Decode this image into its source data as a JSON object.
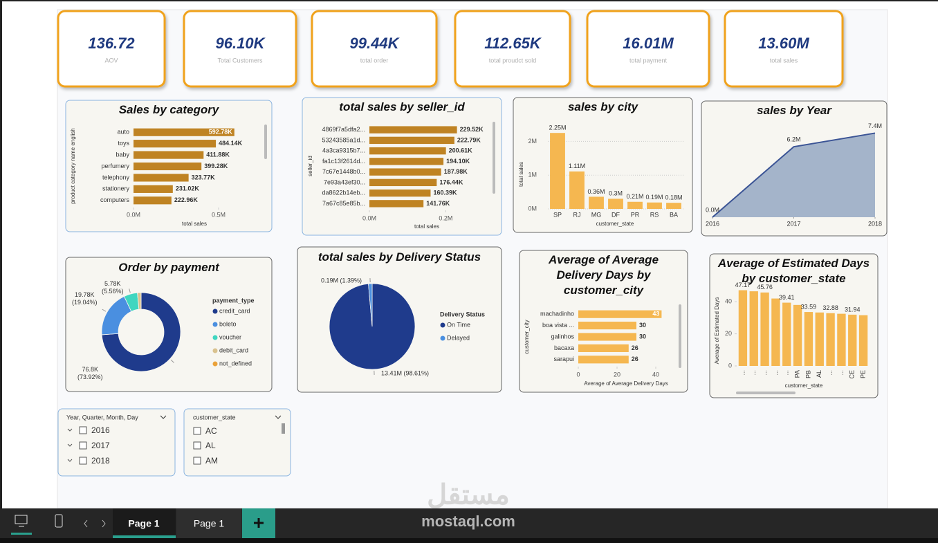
{
  "kpis": [
    {
      "value": "136.72",
      "label": "AOV"
    },
    {
      "value": "96.10K",
      "label": "Total Customers"
    },
    {
      "value": "99.44K",
      "label": "total order"
    },
    {
      "value": "112.65K",
      "label": "total proudct sold"
    },
    {
      "value": "16.01M",
      "label": "total payment"
    },
    {
      "value": "13.60M",
      "label": "total sales"
    }
  ],
  "chart_data": [
    {
      "type": "hbar",
      "title": "Sales by category",
      "categories": [
        "auto",
        "toys",
        "baby",
        "perfumery",
        "telephony",
        "stationery",
        "computers"
      ],
      "values": [
        592780,
        484140,
        411880,
        399280,
        323770,
        231020,
        222960
      ],
      "value_labels": [
        "592.78K",
        "484.14K",
        "411.88K",
        "399.28K",
        "323.77K",
        "231.02K",
        "222.96K"
      ],
      "color": "#bf8323",
      "xlim": [
        0,
        740000
      ],
      "xticks": [
        {
          "value": 0,
          "label": "0.0M"
        },
        {
          "value": 500000,
          "label": "0.5M"
        }
      ],
      "xlabel": "total sales",
      "ylabel": "product category name english"
    },
    {
      "type": "hbar",
      "title": "total sales by seller_id",
      "categories": [
        "4869f7a5dfa2...",
        "53243585a1d...",
        "4a3ca9315b7...",
        "fa1c13f2614d...",
        "7c67e1448b0...",
        "7e93a43ef30...",
        "da8622b14eb...",
        "7a67c85e85b..."
      ],
      "values": [
        229520,
        222790,
        200610,
        194100,
        187980,
        176440,
        160390,
        141760
      ],
      "value_labels": [
        "229.52K",
        "222.79K",
        "200.61K",
        "194.10K",
        "187.98K",
        "176.44K",
        "160.39K",
        "141.76K"
      ],
      "color": "#bf8323",
      "xlim": [
        0,
        310000
      ],
      "xticks": [
        {
          "value": 0,
          "label": "0.0M"
        },
        {
          "value": 200000,
          "label": "0.2M"
        }
      ],
      "xlabel": "total sales",
      "ylabel": "seller_id"
    },
    {
      "type": "vbar",
      "title": "sales by city",
      "categories": [
        "SP",
        "RJ",
        "MG",
        "DF",
        "PR",
        "RS",
        "BA"
      ],
      "values": [
        2250000,
        1110000,
        360000,
        300000,
        210000,
        190000,
        180000
      ],
      "value_labels": [
        "2.25M",
        "1.11M",
        "0.36M",
        "0.3M",
        "0.21M",
        "0.19M",
        "0.18M"
      ],
      "color": "#f5b750",
      "ylim": [
        0,
        2500000
      ],
      "yticks": [
        {
          "value": 0,
          "label": "0M"
        },
        {
          "value": 1000000,
          "label": "1M"
        },
        {
          "value": 2000000,
          "label": "2M"
        }
      ],
      "grid": true,
      "xlabel": "customer_state",
      "ylabel": "total sales"
    },
    {
      "type": "area",
      "title": "sales by Year",
      "x": [
        2016,
        2017,
        2018
      ],
      "values": [
        0,
        6200000,
        7400000
      ],
      "value_labels": [
        "0.0M",
        "6.2M",
        "7.4M"
      ],
      "color": "#3b5495",
      "fill": "#a4b4ca",
      "xlim": [
        2016,
        2018
      ],
      "xticks": [
        2016,
        2017,
        2018
      ],
      "ylim": [
        0,
        8400000
      ]
    },
    {
      "type": "donut",
      "title": "Order by payment",
      "categories": [
        "credit_card",
        "boleto",
        "voucher",
        "debit_card",
        "not_defined"
      ],
      "values": [
        76800,
        19780,
        5780,
        1540,
        30
      ],
      "value_labels": [
        "76.8K\n(73.92%)",
        "19.78K\n(19.04%)",
        "5.78K\n(5.56%)",
        null,
        null
      ],
      "colors": [
        "#1f3b8c",
        "#4a8fe0",
        "#3fd6c0",
        "#d9c28f",
        "#eaa23a"
      ],
      "legend_title": "payment_type"
    },
    {
      "type": "pie",
      "title": "total sales by Delivery Status",
      "categories": [
        "On Time",
        "Delayed"
      ],
      "values": [
        13410000,
        190000
      ],
      "value_labels": [
        "13.41M (98.61%)",
        "0.19M (1.39%)"
      ],
      "colors": [
        "#1f3b8c",
        "#4a8fe0"
      ],
      "legend_title": "Delivery Status"
    },
    {
      "type": "hbar",
      "title": "Average of Average Delivery Days by customer_city",
      "categories": [
        "machadinho",
        "boa vista ...",
        "galinhos",
        "bacaxa",
        "sarapui"
      ],
      "values": [
        43,
        30,
        30,
        26,
        26
      ],
      "value_labels": [
        "43",
        "30",
        "30",
        "26",
        "26"
      ],
      "color": "#f5b750",
      "xlim": [
        0,
        50
      ],
      "xticks": [
        0,
        20,
        40
      ],
      "xlabel": "Average of Average Delivery Days",
      "ylabel": "customer_city"
    },
    {
      "type": "vbar",
      "title": "Average of Estimated Days by customer_state",
      "categories": [
        "...",
        "...",
        "...",
        "...",
        "...",
        "PA",
        "PB",
        "AL",
        "...",
        "...",
        "CE",
        "PE"
      ],
      "values": [
        47.17,
        46.5,
        45.76,
        42,
        39.41,
        38,
        33.59,
        33.3,
        32.88,
        32.5,
        31.94,
        31.6
      ],
      "value_labels": [
        "47.17",
        null,
        "45.76",
        null,
        "39.41",
        null,
        "33.59",
        null,
        "32.88",
        null,
        "31.94",
        null
      ],
      "color": "#f5b750",
      "ylim": [
        0,
        50
      ],
      "yticks": [
        0,
        20,
        40
      ],
      "grid": false,
      "xlabel": "customer_state",
      "ylabel": "Average of Estimated Days"
    }
  ],
  "slicers": [
    {
      "title": "Year, Quarter, Month, Day",
      "items": [
        "2016",
        "2017",
        "2018"
      ]
    },
    {
      "title": "customer_state",
      "items": [
        "AC",
        "AL",
        "AM"
      ]
    }
  ],
  "tabs": [
    "Page 1",
    "Page 1"
  ],
  "watermark": {
    "arabic": "مستقل",
    "latin": "mostaql.com"
  }
}
